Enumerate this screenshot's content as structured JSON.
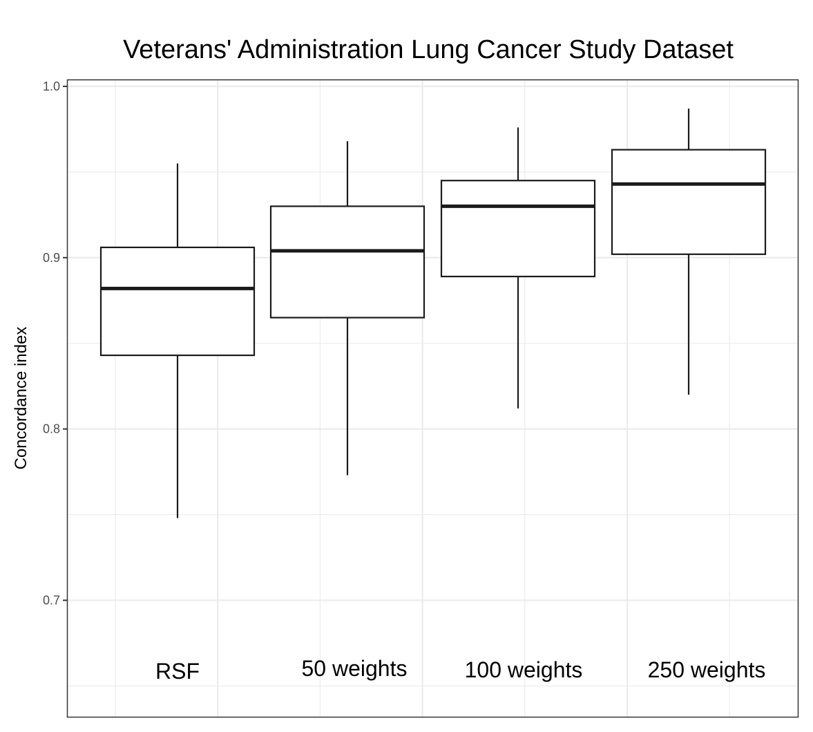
{
  "chart_data": {
    "type": "boxplot",
    "title": "Veterans' Administration Lung Cancer Study Dataset",
    "xlabel": "",
    "ylabel": "Concordance index",
    "ylim": [
      0.632,
      1.004
    ],
    "yticks": [
      1.0,
      0.9,
      0.8,
      0.7
    ],
    "ytick_labels": [
      "1.0",
      "0.9",
      "0.8",
      "0.7"
    ],
    "grid": true,
    "x_axis_ticks_shown": false,
    "categories": [
      "RSF",
      "50 weights",
      "100 weights",
      "250 weights"
    ],
    "series": [
      {
        "name": "RSF",
        "whisker_low": 0.748,
        "q1": 0.843,
        "median": 0.882,
        "q3": 0.906,
        "whisker_high": 0.955
      },
      {
        "name": "50 weights",
        "whisker_low": 0.773,
        "q1": 0.865,
        "median": 0.904,
        "q3": 0.93,
        "whisker_high": 0.968
      },
      {
        "name": "100 weights",
        "whisker_low": 0.812,
        "q1": 0.889,
        "median": 0.93,
        "q3": 0.945,
        "whisker_high": 0.976
      },
      {
        "name": "250 weights",
        "whisker_low": 0.82,
        "q1": 0.902,
        "median": 0.943,
        "q3": 0.963,
        "whisker_high": 0.987
      }
    ],
    "annotations": [
      "RSF",
      "50 weights",
      "100 weights",
      "250 weights"
    ],
    "colors": {
      "box_fill": "#ffffff",
      "box_line": "#1a1a1a",
      "grid": "#ebebeb",
      "panel_border": "#333333"
    }
  }
}
